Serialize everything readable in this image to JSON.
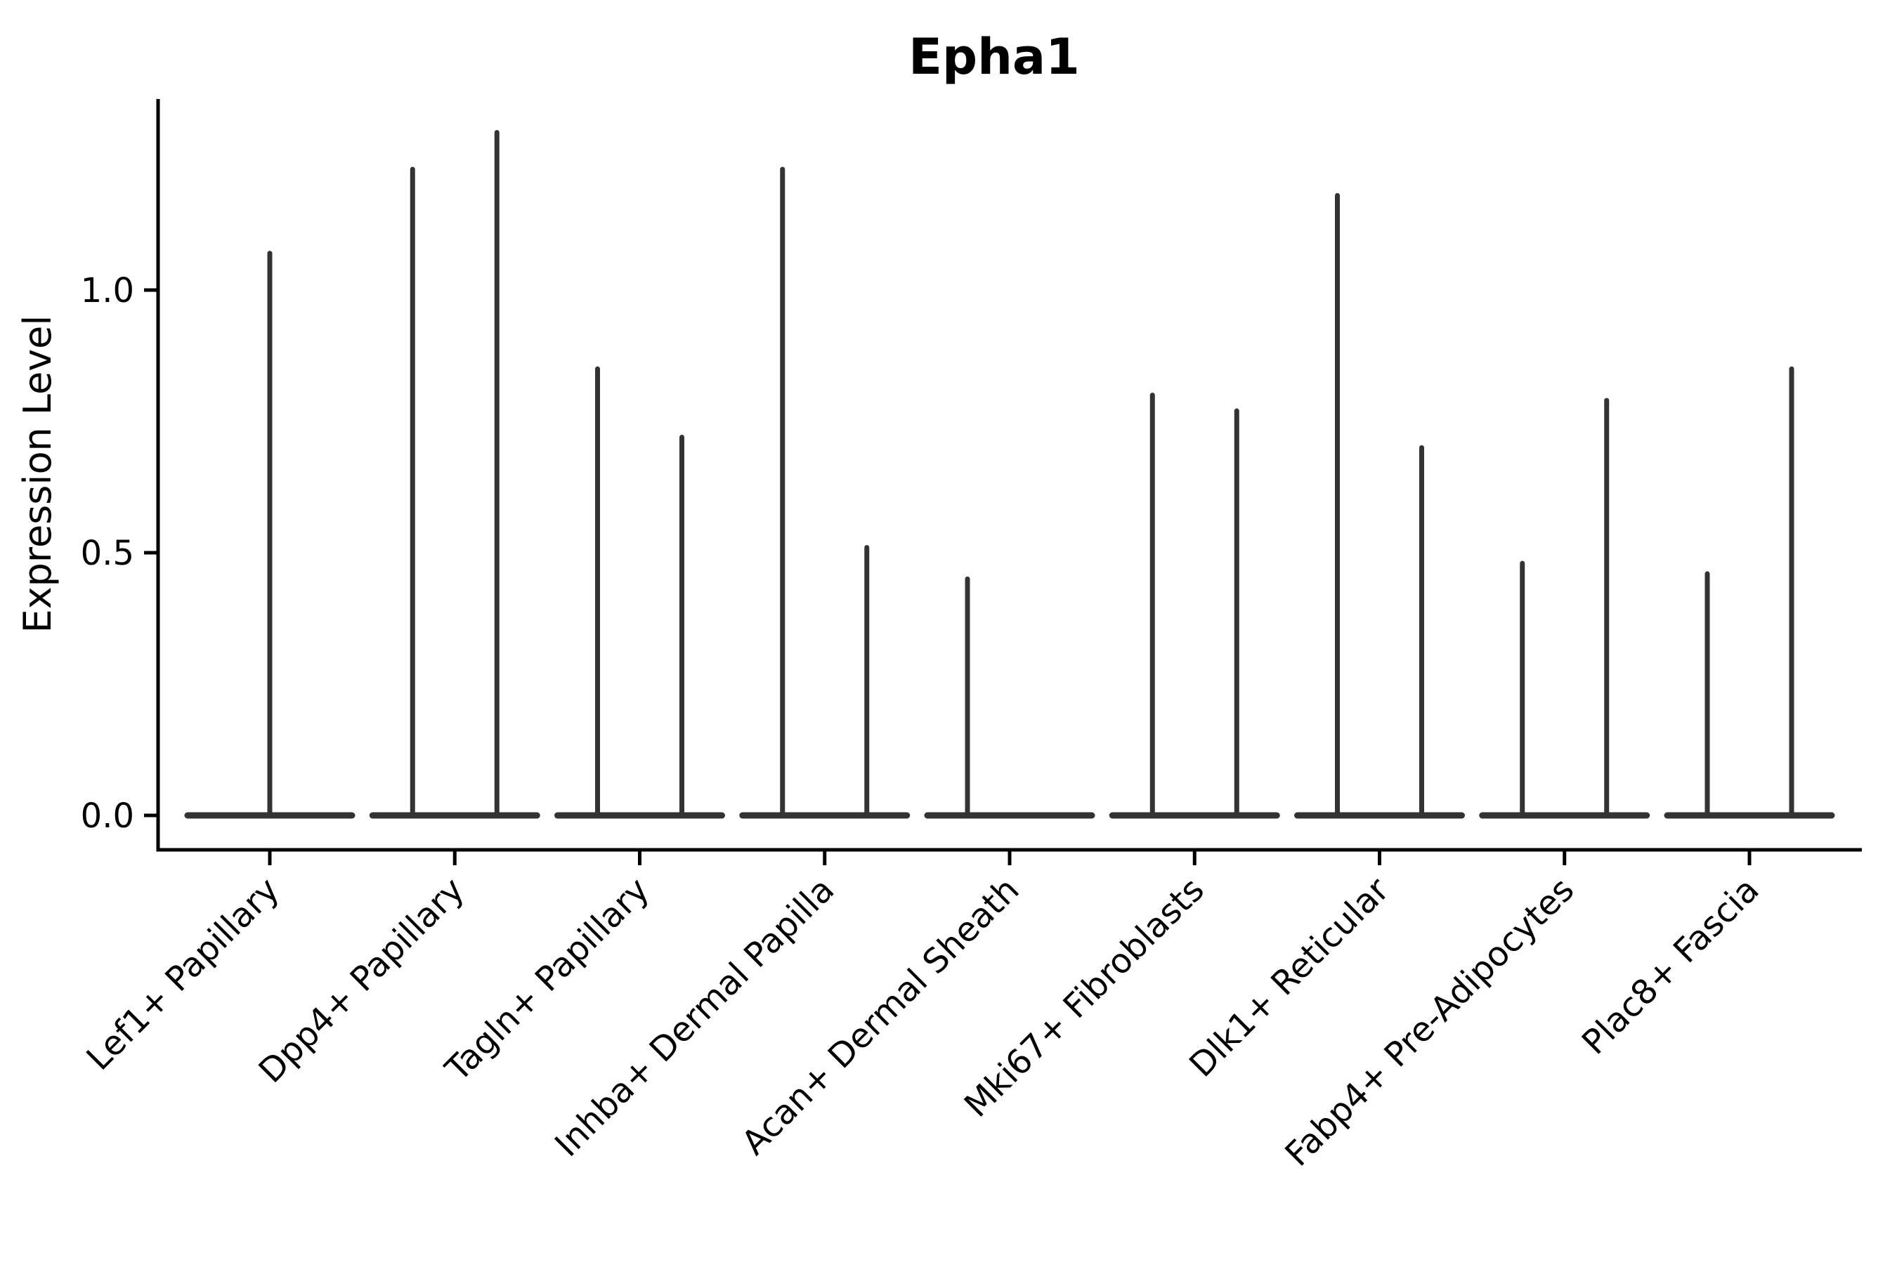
{
  "chart_data": {
    "type": "violin",
    "title": "Epha1",
    "xlabel": "",
    "ylabel": "Expression Level",
    "grid": false,
    "legend": "none",
    "yticks": [
      0.0,
      0.5,
      1.0
    ],
    "ytick_labels": [
      "0.0",
      "0.5",
      "1.0"
    ],
    "ylim": [
      -0.07,
      1.36
    ],
    "xtick_rotation": 45,
    "categories": [
      "Lef1+ Papillary",
      "Dpp4+ Papillary",
      "Tagln+ Papillary",
      "Inhba+ Dermal Papilla",
      "Acan+ Dermal Sheath",
      "Mki67+ Fibroblasts",
      "Dlk1+ Reticular",
      "Fabp4+ Pre-Adipocytes",
      "Plac8+ Fascia"
    ],
    "violins": [
      {
        "category": "Lef1+ Papillary",
        "max_values": [
          1.07
        ]
      },
      {
        "category": "Dpp4+ Papillary",
        "max_values": [
          1.23,
          1.3
        ]
      },
      {
        "category": "Tagln+ Papillary",
        "max_values": [
          0.85,
          0.72
        ]
      },
      {
        "category": "Inhba+ Dermal Papilla",
        "max_values": [
          1.23,
          0.51
        ]
      },
      {
        "category": "Acan+ Dermal Sheath",
        "max_values": [
          0.45,
          0.0
        ]
      },
      {
        "category": "Mki67+ Fibroblasts",
        "max_values": [
          0.8,
          0.77
        ]
      },
      {
        "category": "Dlk1+ Reticular",
        "max_values": [
          1.18,
          0.7
        ]
      },
      {
        "category": "Fabp4+ Pre-Adipocytes",
        "max_values": [
          0.48,
          0.79
        ]
      },
      {
        "category": "Plac8+ Fascia",
        "max_values": [
          0.46,
          0.85
        ]
      }
    ],
    "description": "Each category shows violin(s) of zero-inflated expression: wide flat base at 0 with a thin spike rising to the max expression value.",
    "colors": {
      "violin_line": "#333333",
      "axis": "#000000",
      "text": "#000000",
      "background": "#ffffff"
    }
  }
}
